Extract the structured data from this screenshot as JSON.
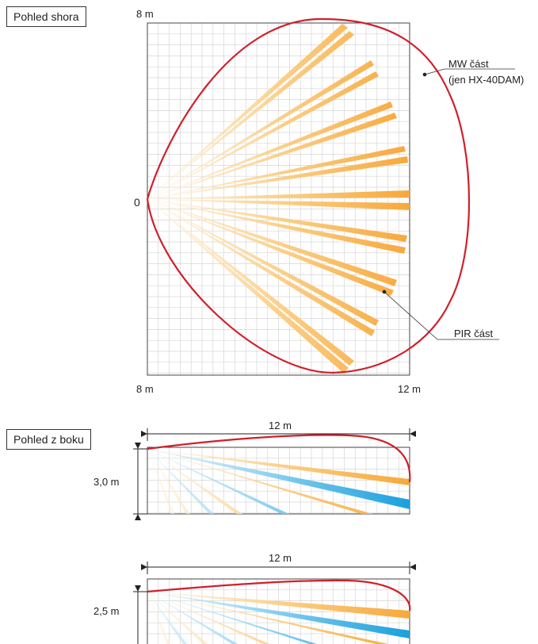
{
  "top_view": {
    "label": "Pohled shora",
    "corner_top_left": "8 m",
    "corner_bottom_left": "8 m",
    "corner_bottom_right": "12 m",
    "origin": "0",
    "mw_callout_line1": "MW část",
    "mw_callout_line2": "(jen HX-40DAM)",
    "pir_callout": "PIR část"
  },
  "side_view_1": {
    "label": "Pohled z boku",
    "width_label": "12 m",
    "height_label": "3,0 m"
  },
  "side_view_2": {
    "width_label": "12 m",
    "height_label": "2,5 m"
  },
  "colors": {
    "mw_outline": "#d0202a",
    "pir_beam": "#f7b24a",
    "pir_beam_light": "#fde8c4",
    "blue_beam": "#29a8e0",
    "grid": "#d6d6d6"
  }
}
